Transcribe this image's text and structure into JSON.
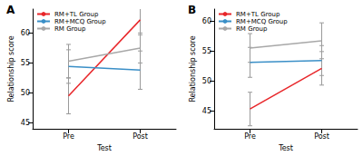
{
  "chart_data": [
    {
      "type": "line",
      "title": "A",
      "categories": [
        "Pre",
        "Post"
      ],
      "x_label": "Test",
      "y_label": "Relationship score",
      "ylim": [
        44,
        64
      ],
      "yticks": [
        45,
        50,
        55,
        60
      ],
      "grid": false,
      "legend": "upper left",
      "series": [
        {
          "name": "RM+TL Group",
          "color": "#e8262a",
          "values": [
            49.5,
            62.2
          ],
          "errors": [
            3.0,
            2.5
          ]
        },
        {
          "name": "RM+MCQ Group",
          "color": "#3a8fc7",
          "values": [
            54.4,
            53.8
          ],
          "errors": [
            2.8,
            3.2
          ]
        },
        {
          "name": "RM Group",
          "color": "#a8a8a8",
          "values": [
            55.3,
            57.5
          ],
          "errors": [
            2.8,
            2.5
          ]
        }
      ]
    },
    {
      "type": "line",
      "title": "B",
      "categories": [
        "Pre",
        "Post"
      ],
      "x_label": "Test",
      "y_label": "Relationship score",
      "ylim": [
        42,
        62
      ],
      "yticks": [
        45,
        50,
        55,
        60
      ],
      "grid": false,
      "legend": "upper left",
      "series": [
        {
          "name": "RM+TL Group",
          "color": "#e8262a",
          "values": [
            45.3,
            52.1
          ],
          "errors": [
            2.8,
            2.8
          ]
        },
        {
          "name": "RM+MCQ Group",
          "color": "#3a8fc7",
          "values": [
            53.1,
            53.4
          ],
          "errors": [
            2.5,
            2.5
          ]
        },
        {
          "name": "RM Group",
          "color": "#a8a8a8",
          "values": [
            55.5,
            56.7
          ],
          "errors": [
            2.4,
            3.0
          ]
        }
      ]
    }
  ]
}
